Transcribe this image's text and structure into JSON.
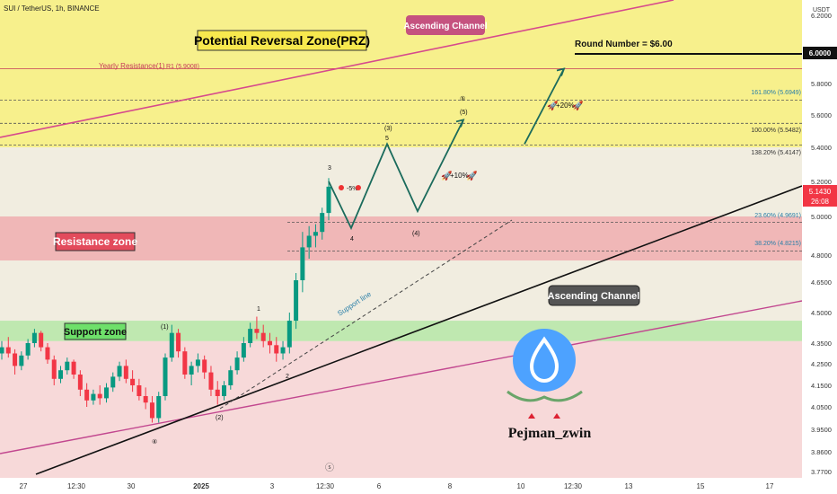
{
  "header": {
    "symbol_line": "SUI / TetherUS, 1h, BINANCE",
    "currency": "USDT"
  },
  "chart_data": {
    "type": "candlestick",
    "symbol": "SUI / TetherUS",
    "interval": "1h",
    "exchange": "BINANCE",
    "y_axis": {
      "unit": "USDT",
      "ylim": [
        3.77,
        6.25
      ],
      "ticks": [
        "6.2000",
        "6.0000",
        "5.8000",
        "5.6000",
        "5.4000",
        "5.2000",
        "5.0000",
        "4.8000",
        "4.6500",
        "4.5000",
        "4.3500",
        "4.2500",
        "4.1500",
        "4.0500",
        "3.9500",
        "3.8600",
        "3.7700"
      ],
      "tick_values": [
        6.2,
        6.0,
        5.8,
        5.6,
        5.4,
        5.2,
        5.0,
        4.8,
        4.65,
        4.5,
        4.35,
        4.25,
        4.15,
        4.05,
        3.95,
        3.86,
        3.77
      ]
    },
    "x_axis": {
      "ticks": [
        "27",
        "12:30",
        "30",
        "2025",
        "3",
        "12:30",
        "6",
        "8",
        "10",
        "12:30",
        "13",
        "15",
        "17"
      ]
    },
    "last_price": {
      "value": "5.1430",
      "countdown": "26:08",
      "color": "#f23645"
    },
    "round_number_level": {
      "value": "6.0000"
    },
    "zones": [
      {
        "name": "Potential Reversal Zone(PRZ)",
        "from": 5.4,
        "to": 6.25,
        "color": "#f7f08c"
      },
      {
        "name": "Resistance zone",
        "from": 4.77,
        "to": 5.0,
        "color": "#f0b7b7"
      },
      {
        "name": "Support zone",
        "from": 4.36,
        "to": 4.46,
        "color": "#bfe8b0"
      }
    ],
    "levels": [
      {
        "label": "Yearly Resistance(1)",
        "sub": "R1 (5.9008)",
        "value": 5.9008
      },
      {
        "label": "161.80% (5.6949)",
        "value": 5.6949
      },
      {
        "label": "100.00% (5.5482)",
        "value": 5.5482
      },
      {
        "label": "138.20% (5.4147)",
        "value": 5.4147
      },
      {
        "label": "23.60% (4.9691)",
        "value": 4.9691
      },
      {
        "label": "38.20% (4.8215)",
        "value": 4.8215
      }
    ],
    "candles": [
      [
        4.3,
        4.36,
        4.27,
        4.33
      ],
      [
        4.33,
        4.38,
        4.28,
        4.3
      ],
      [
        4.3,
        4.32,
        4.2,
        4.24
      ],
      [
        4.24,
        4.31,
        4.22,
        4.29
      ],
      [
        4.29,
        4.37,
        4.27,
        4.35
      ],
      [
        4.35,
        4.42,
        4.33,
        4.4
      ],
      [
        4.4,
        4.41,
        4.31,
        4.33
      ],
      [
        4.33,
        4.35,
        4.25,
        4.27
      ],
      [
        4.27,
        4.29,
        4.15,
        4.18
      ],
      [
        4.18,
        4.24,
        4.16,
        4.22
      ],
      [
        4.22,
        4.28,
        4.2,
        4.26
      ],
      [
        4.26,
        4.27,
        4.18,
        4.2
      ],
      [
        4.2,
        4.22,
        4.1,
        4.13
      ],
      [
        4.13,
        4.16,
        4.05,
        4.08
      ],
      [
        4.08,
        4.13,
        4.06,
        4.11
      ],
      [
        4.11,
        4.15,
        4.06,
        4.09
      ],
      [
        4.09,
        4.16,
        4.07,
        4.14
      ],
      [
        4.14,
        4.21,
        4.12,
        4.19
      ],
      [
        4.19,
        4.26,
        4.17,
        4.24
      ],
      [
        4.24,
        4.27,
        4.16,
        4.18
      ],
      [
        4.18,
        4.22,
        4.12,
        4.15
      ],
      [
        4.15,
        4.18,
        4.08,
        4.1
      ],
      [
        4.1,
        4.14,
        4.04,
        4.07
      ],
      [
        4.07,
        4.1,
        3.98,
        4.0
      ],
      [
        4.0,
        4.12,
        3.98,
        4.1
      ],
      [
        4.1,
        4.3,
        4.08,
        4.28
      ],
      [
        4.28,
        4.44,
        4.26,
        4.4
      ],
      [
        4.4,
        4.42,
        4.28,
        4.31
      ],
      [
        4.31,
        4.33,
        4.18,
        4.2
      ],
      [
        4.2,
        4.26,
        4.15,
        4.24
      ],
      [
        4.24,
        4.3,
        4.21,
        4.27
      ],
      [
        4.27,
        4.29,
        4.18,
        4.21
      ],
      [
        4.21,
        4.24,
        4.1,
        4.13
      ],
      [
        4.13,
        4.17,
        4.06,
        4.1
      ],
      [
        4.1,
        4.17,
        4.08,
        4.15
      ],
      [
        4.15,
        4.24,
        4.13,
        4.22
      ],
      [
        4.22,
        4.31,
        4.2,
        4.28
      ],
      [
        4.28,
        4.38,
        4.26,
        4.35
      ],
      [
        4.35,
        4.45,
        4.33,
        4.42
      ],
      [
        4.42,
        4.48,
        4.37,
        4.4
      ],
      [
        4.4,
        4.44,
        4.33,
        4.36
      ],
      [
        4.36,
        4.4,
        4.3,
        4.34
      ],
      [
        4.34,
        4.38,
        4.26,
        4.3
      ],
      [
        4.3,
        4.36,
        4.27,
        4.33
      ],
      [
        4.33,
        4.5,
        4.3,
        4.46
      ],
      [
        4.46,
        4.7,
        4.42,
        4.66
      ],
      [
        4.66,
        4.92,
        4.6,
        4.84
      ],
      [
        4.84,
        4.95,
        4.78,
        4.9
      ],
      [
        4.9,
        4.96,
        4.84,
        4.92
      ],
      [
        4.92,
        5.05,
        4.88,
        5.02
      ],
      [
        5.02,
        5.22,
        4.98,
        5.17
      ]
    ],
    "projection_path": [
      {
        "label": "3",
        "value": 5.2
      },
      {
        "label": "4",
        "value": 4.94
      },
      {
        "label": "(3) 5",
        "value": 5.42
      },
      {
        "label": "(4)",
        "value": 5.03
      },
      {
        "label": "(5)",
        "value": 5.57
      },
      {
        "label": "Round Number",
        "value": 5.9
      }
    ],
    "wave_labels": [
      "1",
      "2",
      "3",
      "4",
      "5",
      "(1)",
      "(2)",
      "(3)",
      "(4)",
      "(5)",
      "④",
      "⑤"
    ],
    "annotations": {
      "prz": "Potential Reversal Zone(PRZ)",
      "ascending_channel_top": "Ascending Channel",
      "ascending_channel_bottom": "Ascending Channel",
      "round_number": "Round Number = $6.00",
      "support_line": "Support line",
      "pct_minus5": "-5%",
      "pct_plus10": "+10%",
      "pct_plus20": "+20%",
      "watermark": "Pejman_zwin"
    }
  },
  "colors": {
    "prz": "#f7f08c",
    "resistance": "#f0b7b7",
    "support": "#bfe8b0",
    "lower_bg": "#f7d9d9",
    "mid_bg": "#f1ede0",
    "up": "#089981",
    "down": "#f23645",
    "channel_top": "#d64a8c",
    "channel_bottom": "#c2478f",
    "logo_blue": "#4da2ff"
  },
  "icons": {
    "rocket": "rocket-icon",
    "alarm": "alarm-icon",
    "lightning": "lightning-icon"
  }
}
